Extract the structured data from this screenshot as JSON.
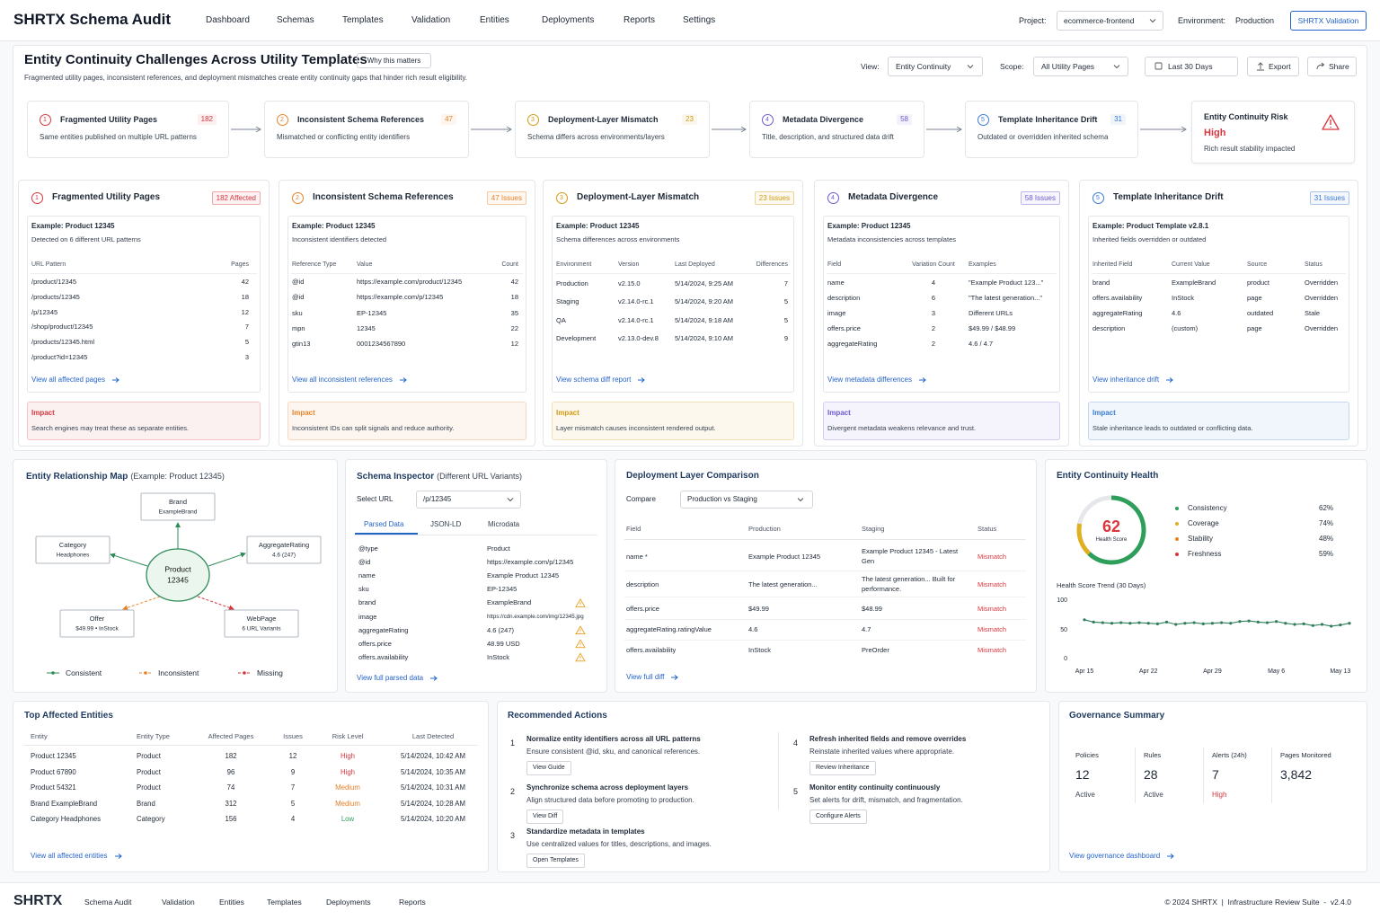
{
  "header": {
    "brand": "SHRTX Schema Audit",
    "nav": [
      "Dashboard",
      "Schemas",
      "Templates",
      "Validation",
      "Entities",
      "Deployments",
      "Reports",
      "Settings"
    ],
    "project_label": "Project:",
    "project": "ecommerce-frontend",
    "env_label": "Environment:",
    "env": "Production",
    "button": "SHRTX Validation"
  },
  "page": {
    "title": "Entity Continuity Challenges Across Utility Templates",
    "badge": "Why this matters",
    "subtitle": "Fragmented utility pages, inconsistent references, and deployment mismatches create entity continuity gaps that hinder rich result eligibility.",
    "view_label": "View:",
    "view": "Entity Continuity",
    "scope_label": "Scope:",
    "scope": "All Utility Pages",
    "date": "Last 30 Days",
    "export": "Export",
    "share": "Share"
  },
  "issues": [
    {
      "num": "1",
      "title": "Fragmented Utility Pages",
      "count": "182",
      "summary": "Same entities published on multiple URL patterns",
      "color": "#d9363e",
      "badge": "182 Affected",
      "example": "Example: Product 12345",
      "example_desc": "Detected on 6 different URL patterns",
      "columns": [
        "URL Pattern",
        "Pages"
      ],
      "rows": [
        [
          "/product/12345",
          "42"
        ],
        [
          "/products/12345",
          "18"
        ],
        [
          "/p/12345",
          "12"
        ],
        [
          "/shop/product/12345",
          "7"
        ],
        [
          "/products/12345.html",
          "5"
        ],
        [
          "/product?id=12345",
          "3"
        ]
      ],
      "link": "View all affected pages",
      "impact_title": "Impact",
      "impact": "Search engines may treat these as separate entities."
    },
    {
      "num": "2",
      "title": "Inconsistent Schema References",
      "count": "47",
      "summary": "Mismatched or conflicting entity identifiers",
      "color": "#e8832a",
      "badge": "47 Issues",
      "example": "Example: Product 12345",
      "example_desc": "Inconsistent identifiers detected",
      "columns": [
        "Reference Type",
        "Value",
        "Count"
      ],
      "rows": [
        [
          "@id",
          "https://example.com/product/12345",
          "42"
        ],
        [
          "@id",
          "https://example.com/p/12345",
          "18"
        ],
        [
          "sku",
          "EP-12345",
          "35"
        ],
        [
          "mpn",
          "12345",
          "22"
        ],
        [
          "gtin13",
          "0001234567890",
          "12"
        ]
      ],
      "link": "View all inconsistent references",
      "impact_title": "Impact",
      "impact": "Inconsistent IDs can split signals and reduce authority."
    },
    {
      "num": "3",
      "title": "Deployment-Layer Mismatch",
      "count": "23",
      "summary": "Schema differs across environments/layers",
      "color": "#d49a12",
      "badge": "23 Issues",
      "example": "Example: Product 12345",
      "example_desc": "Schema differences across environments",
      "columns": [
        "Environment",
        "Version",
        "Last Deployed",
        "Differences"
      ],
      "rows": [
        [
          "Production",
          "v2.15.0",
          "5/14/2024, 9:25 AM",
          "7"
        ],
        [
          "Staging",
          "v2.14.0-rc.1",
          "5/14/2024, 9:20 AM",
          "5"
        ],
        [
          "QA",
          "v2.14.0-rc.1",
          "5/14/2024, 9:18 AM",
          "5"
        ],
        [
          "Development",
          "v2.13.0-dev.8",
          "5/14/2024, 9:10 AM",
          "9"
        ]
      ],
      "link": "View schema diff report",
      "impact_title": "Impact",
      "impact": "Layer mismatch causes inconsistent rendered output."
    },
    {
      "num": "4",
      "title": "Metadata Divergence",
      "count": "58",
      "summary": "Title, description, and structured data drift",
      "color": "#6b5bd2",
      "badge": "58 Issues",
      "example": "Example: Product 12345",
      "example_desc": "Metadata inconsistencies across templates",
      "columns": [
        "Field",
        "Variation Count",
        "Examples"
      ],
      "rows": [
        [
          "name",
          "4",
          "\"Example Product 123...\""
        ],
        [
          "description",
          "6",
          "\"The latest generation...\""
        ],
        [
          "image",
          "3",
          "Different URLs"
        ],
        [
          "offers.price",
          "2",
          "$49.99 / $48.99"
        ],
        [
          "aggregateRating",
          "2",
          "4.6 / 4.7"
        ]
      ],
      "link": "View metadata differences",
      "impact_title": "Impact",
      "impact": "Divergent metadata weakens relevance and trust."
    },
    {
      "num": "5",
      "title": "Template Inheritance Drift",
      "count": "31",
      "summary": "Outdated or overridden inherited schema",
      "color": "#3a7bd5",
      "badge": "31 Issues",
      "example": "Example: Product Template v2.8.1",
      "example_desc": "Inherited fields overridden or outdated",
      "columns": [
        "Inherited Field",
        "Current Value",
        "Source",
        "Status"
      ],
      "rows": [
        [
          "brand",
          "ExampleBrand",
          "product",
          "Overridden"
        ],
        [
          "offers.availability",
          "InStock",
          "page",
          "Overridden"
        ],
        [
          "aggregateRating",
          "4.6",
          "outdated",
          "Stale"
        ],
        [
          "description",
          "(custom)",
          "page",
          "Overridden"
        ]
      ],
      "link": "View inheritance drift",
      "impact_title": "Impact",
      "impact": "Stale inheritance leads to outdated or conflicting data."
    }
  ],
  "risk": {
    "title": "Entity Continuity Risk",
    "level": "High",
    "desc": "Rich result stability impacted",
    "color": "#d9363e"
  },
  "map": {
    "title": "Entity Relationship Map",
    "note": "(Example: Product 12345)",
    "center": [
      "Product",
      "12345"
    ],
    "nodes": [
      {
        "title": "Brand",
        "sub": "ExampleBrand",
        "status": "consistent"
      },
      {
        "title": "Category",
        "sub": "Headphones",
        "status": "consistent"
      },
      {
        "title": "AggregateRating",
        "sub": "4.6 (247)",
        "status": "consistent"
      },
      {
        "title": "Offer",
        "sub": "$49.99 • InStock",
        "status": "inconsistent"
      },
      {
        "title": "WebPage",
        "sub": "6 URL Variants",
        "status": "missing"
      }
    ],
    "legend": {
      "consistent": {
        "name": "Consistent",
        "color": "#2e8b57",
        "dashed": false
      },
      "inconsistent": {
        "name": "Inconsistent",
        "color": "#e8832a",
        "dashed": true
      },
      "missing": {
        "name": "Missing",
        "color": "#d9363e",
        "dashed": true
      }
    }
  },
  "inspector": {
    "title": "Schema Inspector",
    "note": "(Different URL Variants)",
    "select_label": "Select URL",
    "select": "/p/12345",
    "tabs": [
      "Parsed Data",
      "JSON-LD",
      "Microdata"
    ],
    "rows": [
      {
        "key": "@type",
        "value": "Product",
        "warn": false
      },
      {
        "key": "@id",
        "value": "https://example.com/p/12345",
        "warn": false
      },
      {
        "key": "name",
        "value": "Example Product 12345",
        "warn": false
      },
      {
        "key": "sku",
        "value": "EP-12345",
        "warn": false
      },
      {
        "key": "brand",
        "value": "ExampleBrand",
        "warn": true
      },
      {
        "key": "image",
        "value": "https://cdn.example.com/img/12345.jpg",
        "warn": false
      },
      {
        "key": "aggregateRating",
        "value": "4.6 (247)",
        "warn": true
      },
      {
        "key": "offers.price",
        "value": "48.99 USD",
        "warn": true
      },
      {
        "key": "offers.availability",
        "value": "InStock",
        "warn": true
      }
    ],
    "link": "View full parsed data"
  },
  "deployment": {
    "title": "Deployment Layer Comparison",
    "compare_label": "Compare",
    "compare": "Production vs Staging",
    "columns": [
      "Field",
      "Production",
      "Staging",
      "Status"
    ],
    "rows": [
      [
        "name *",
        "Example Product 12345",
        "Example Product 12345 - Latest Gen",
        "Mismatch"
      ],
      [
        "description",
        "The latest generation...",
        "The latest generation... Built for performance.",
        "Mismatch"
      ],
      [
        "offers.price",
        "$49.99",
        "$48.99",
        "Mismatch"
      ],
      [
        "aggregateRating.ratingValue",
        "4.6",
        "4.7",
        "Mismatch"
      ],
      [
        "offers.availability",
        "InStock",
        "PreOrder",
        "Mismatch"
      ]
    ],
    "status_color": "#d9363e",
    "link": "View full diff"
  },
  "health": {
    "title": "Entity Continuity Health",
    "score": "62",
    "score_label": "Health Score",
    "score_color": "#d9363e",
    "metrics": [
      {
        "name": "Consistency",
        "value": "62%",
        "color": "#2e9e5b"
      },
      {
        "name": "Coverage",
        "value": "74%",
        "color": "#e0b020"
      },
      {
        "name": "Stability",
        "value": "48%",
        "color": "#e8832a"
      },
      {
        "name": "Freshness",
        "value": "59%",
        "color": "#d9363e"
      }
    ],
    "trend": {
      "type": "line",
      "title": "Health Score Trend (30 Days)",
      "categories": [
        "Apr 15",
        null,
        null,
        null,
        null,
        null,
        null,
        "Apr 22",
        null,
        null,
        null,
        null,
        null,
        null,
        "Apr 29",
        null,
        null,
        null,
        null,
        null,
        null,
        "May 6",
        null,
        null,
        null,
        null,
        null,
        null,
        "May 13",
        null
      ],
      "values": [
        68,
        64,
        63,
        62,
        63,
        62,
        63,
        62,
        61,
        64,
        60,
        62,
        63,
        61,
        62,
        63,
        62,
        65,
        66,
        64,
        63,
        65,
        62,
        60,
        61,
        58,
        60,
        57,
        59,
        62
      ],
      "color": "#2f7d5b",
      "ylim": [
        0,
        100
      ],
      "yticks": [
        0,
        50,
        100
      ],
      "grid": false
    }
  },
  "entities": {
    "title": "Top Affected Entities",
    "columns": [
      "Entity",
      "Entity Type",
      "Affected Pages",
      "Issues",
      "Risk Level",
      "Last Detected"
    ],
    "rows": [
      [
        "Product 12345",
        "Product",
        "182",
        "12",
        "High",
        "5/14/2024, 10:42 AM"
      ],
      [
        "Product 67890",
        "Product",
        "96",
        "9",
        "High",
        "5/14/2024, 10:35 AM"
      ],
      [
        "Product 54321",
        "Product",
        "74",
        "7",
        "Medium",
        "5/14/2024, 10:31 AM"
      ],
      [
        "Brand ExampleBrand",
        "Brand",
        "312",
        "5",
        "Medium",
        "5/14/2024, 10:28 AM"
      ],
      [
        "Category Headphones",
        "Category",
        "156",
        "4",
        "Low",
        "5/14/2024, 10:20 AM"
      ]
    ],
    "risk_colors": {
      "High": "#d9363e",
      "Medium": "#e8832a",
      "Low": "#2e9e5b"
    },
    "link": "View all affected entities"
  },
  "actions": {
    "title": "Recommended Actions",
    "items": [
      {
        "num": "1",
        "title": "Normalize entity identifiers across all URL patterns",
        "desc": "Ensure consistent @id, sku, and canonical references.",
        "button": "View Guide"
      },
      {
        "num": "2",
        "title": "Synchronize schema across deployment layers",
        "desc": "Align structured data before promoting to production.",
        "button": "View Diff"
      },
      {
        "num": "3",
        "title": "Standardize metadata in templates",
        "desc": "Use centralized values for titles, descriptions, and images.",
        "button": "Open Templates"
      },
      {
        "num": "4",
        "title": "Refresh inherited fields and remove overrides",
        "desc": "Reinstate inherited values where appropriate.",
        "button": "Review Inheritance"
      },
      {
        "num": "5",
        "title": "Monitor entity continuity continuously",
        "desc": "Set alerts for drift, mismatch, and fragmentation.",
        "button": "Configure Alerts"
      }
    ]
  },
  "governance": {
    "title": "Governance Summary",
    "stats": [
      {
        "label": "Policies",
        "value": "12",
        "sub": "Active"
      },
      {
        "label": "Rules",
        "value": "28",
        "sub": "Active"
      },
      {
        "label": "Alerts (24h)",
        "value": "7",
        "sub": "High",
        "sub_color": "#d9363e"
      },
      {
        "label": "Pages Monitored",
        "value": "3,842"
      }
    ],
    "link": "View governance dashboard"
  },
  "footer": {
    "brand": "SHRTX",
    "links": [
      "Schema Audit",
      "Validation",
      "Entities",
      "Templates",
      "Deployments",
      "Reports"
    ],
    "right": "© 2024 SHRTX  |  Infrastructure Review Suite  -  v2.4.0"
  }
}
